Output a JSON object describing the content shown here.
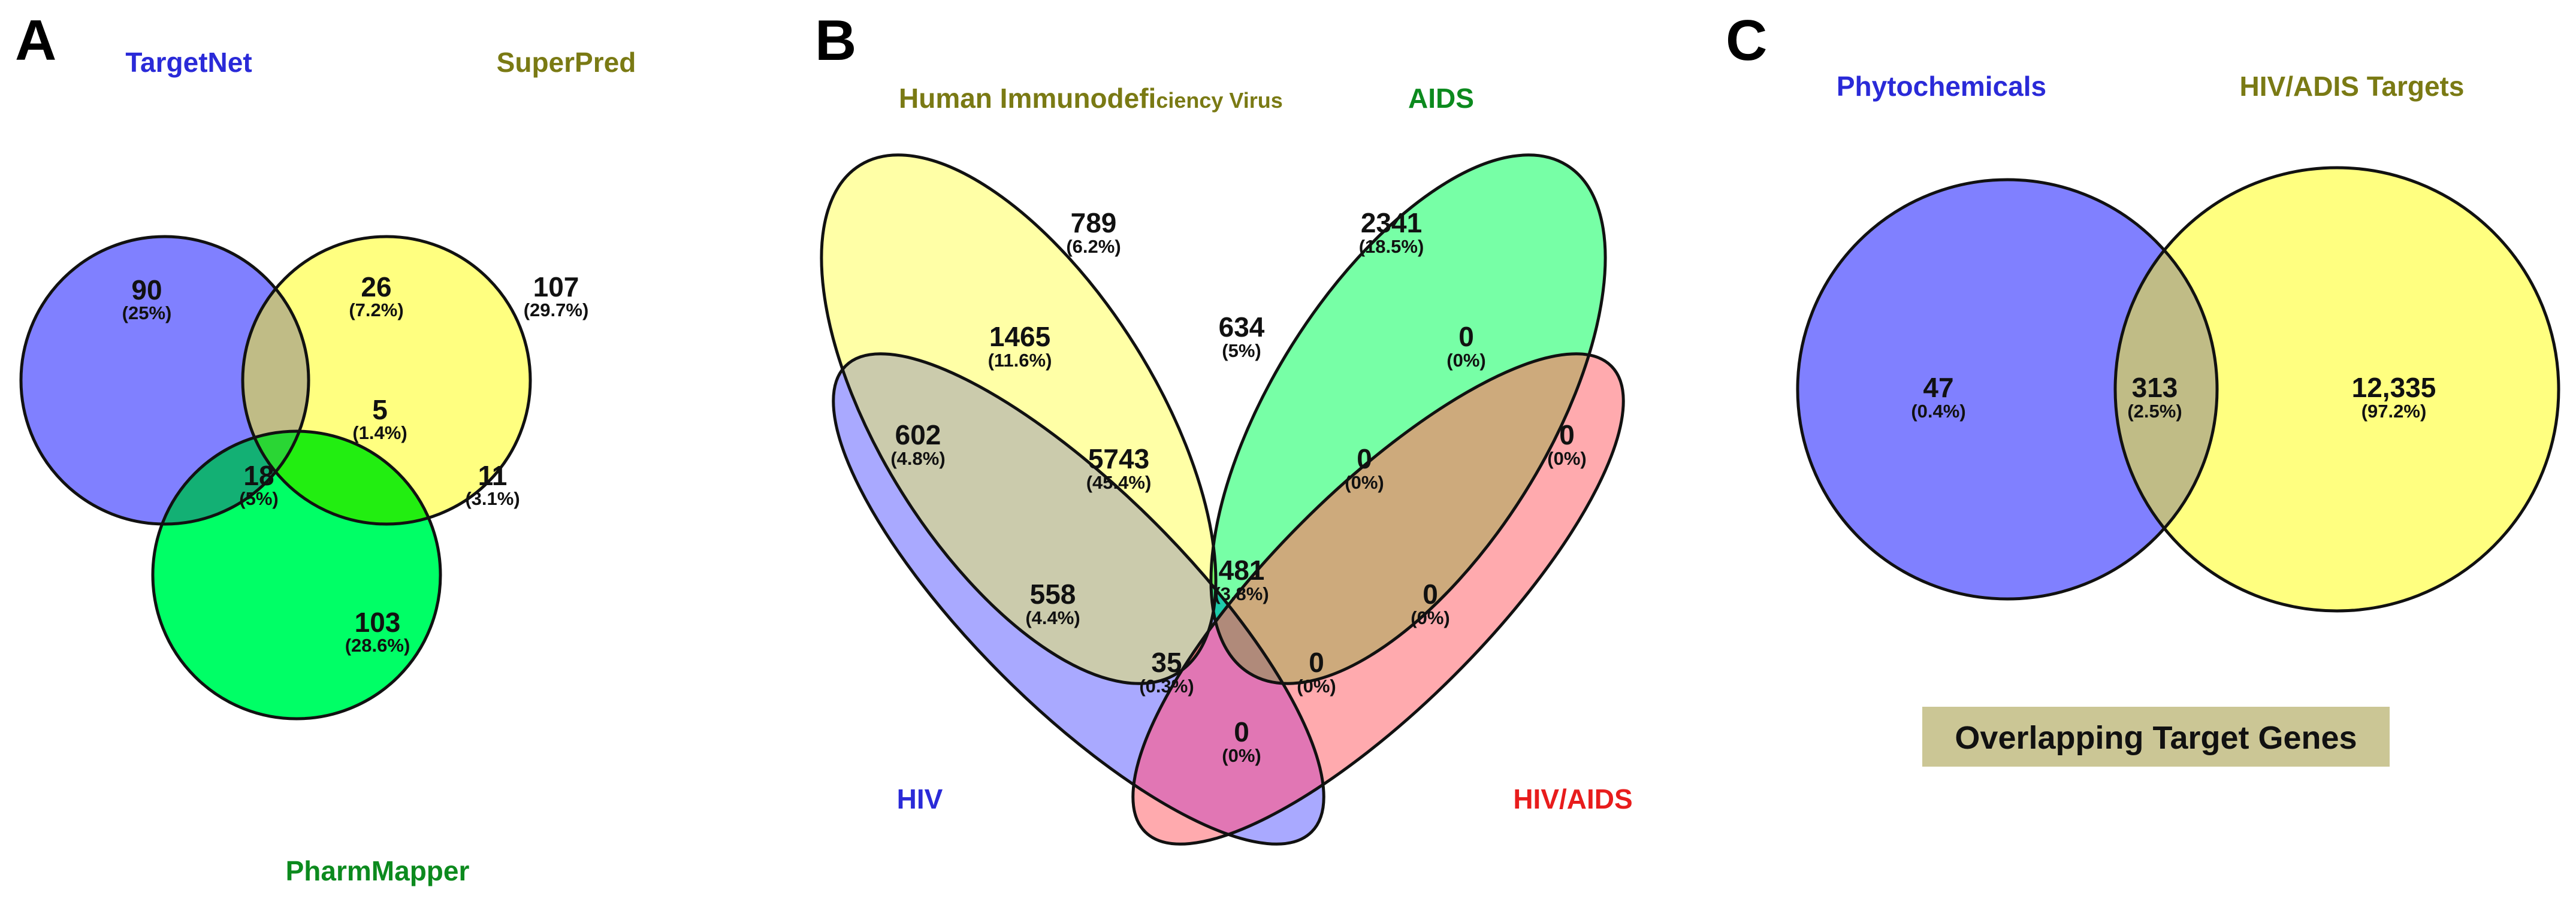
{
  "colors": {
    "blue": "#8080ff",
    "yellow": "#ffff80",
    "green": "#00ff66",
    "lightblue": "#a9a9ff",
    "lightyellow": "#ffffa6",
    "aqua": "#77ffa6",
    "pink": "#ffaaae",
    "banner": "#cbc695"
  },
  "panel_a": {
    "letter": "A",
    "labels": {
      "targetnet": "TargetNet",
      "superpred": "SuperPred",
      "pharmmapper": "PharmMapper"
    },
    "regions": [
      {
        "id": "tn-only",
        "count": "90",
        "pct": "(25%)"
      },
      {
        "id": "tn-sp",
        "count": "26",
        "pct": "(7.2%)"
      },
      {
        "id": "sp-only",
        "count": "107",
        "pct": "(29.7%)"
      },
      {
        "id": "all-three",
        "count": "5",
        "pct": "(1.4%)"
      },
      {
        "id": "tn-pm",
        "count": "18",
        "pct": "(5%)"
      },
      {
        "id": "sp-pm",
        "count": "11",
        "pct": "(3.1%)"
      },
      {
        "id": "pm-only",
        "count": "103",
        "pct": "(28.6%)"
      }
    ]
  },
  "panel_b": {
    "letter": "B",
    "labels": {
      "hiv_virus_main": "Human Immunodefi",
      "hiv_virus_small": "ciency Virus",
      "aids": "AIDS",
      "hiv": "HIV",
      "hiv_aids": "HIV/AIDS"
    },
    "regions": [
      {
        "id": "virus-only",
        "count": "789",
        "pct": "(6.2%)"
      },
      {
        "id": "aids-only",
        "count": "2341",
        "pct": "(18.5%)"
      },
      {
        "id": "hiv-virus",
        "count": "1465",
        "pct": "(11.6%)"
      },
      {
        "id": "virus-aids",
        "count": "634",
        "pct": "(5%)"
      },
      {
        "id": "aids-hivaids",
        "count": "0",
        "pct": "(0%)"
      },
      {
        "id": "hiv-only",
        "count": "602",
        "pct": "(4.8%)"
      },
      {
        "id": "hiv-virus-aids",
        "count": "5743",
        "pct": "(45.4%)"
      },
      {
        "id": "virus-aids-hivaids",
        "count": "0",
        "pct": "(0%)"
      },
      {
        "id": "hivaids-only",
        "count": "0",
        "pct": "(0%)"
      },
      {
        "id": "hiv-aids",
        "count": "558",
        "pct": "(4.4%)"
      },
      {
        "id": "all-four",
        "count": "481",
        "pct": "(3.8%)"
      },
      {
        "id": "virus-hivaids",
        "count": "0",
        "pct": "(0%)"
      },
      {
        "id": "hiv-aids-hivaids",
        "count": "35",
        "pct": "(0.3%)"
      },
      {
        "id": "hiv-virus-hivaids",
        "count": "0",
        "pct": "(0%)"
      },
      {
        "id": "hiv-hivaids",
        "count": "0",
        "pct": "(0%)"
      }
    ]
  },
  "panel_c": {
    "letter": "C",
    "labels": {
      "phyto": "Phytochemicals",
      "targets": "HIV/ADIS Targets"
    },
    "regions": [
      {
        "id": "phyto-only",
        "count": "47",
        "pct": "(0.4%)"
      },
      {
        "id": "overlap",
        "count": "313",
        "pct": "(2.5%)"
      },
      {
        "id": "targets-only",
        "count": "12,335",
        "pct": "(97.2%)"
      }
    ],
    "banner": "Overlapping Target Genes"
  }
}
